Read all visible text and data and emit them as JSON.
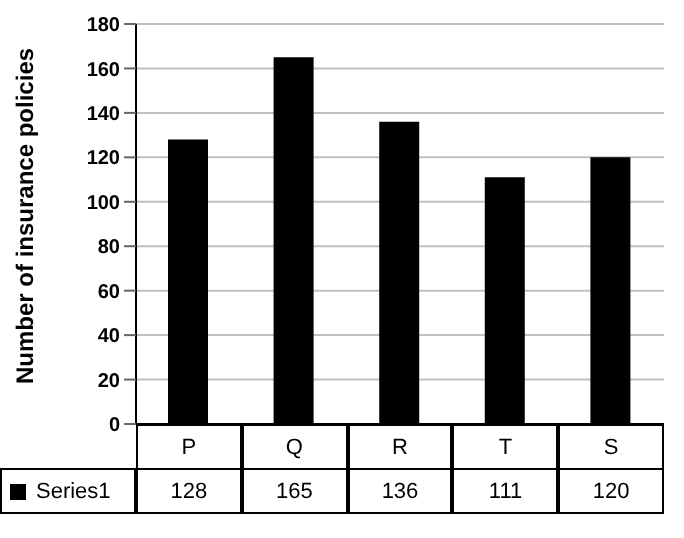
{
  "chart_data": {
    "type": "bar",
    "ylabel": "Number of insurance policies",
    "categories": [
      "P",
      "Q",
      "R",
      "T",
      "S"
    ],
    "series": [
      {
        "name": "Series1",
        "color": "#000000",
        "values": [
          128,
          165,
          136,
          111,
          120
        ]
      }
    ],
    "ylim": [
      0,
      180
    ],
    "yticks": [
      0,
      20,
      40,
      60,
      80,
      100,
      120,
      140,
      160,
      180
    ],
    "grid": "y",
    "legend": "bottom",
    "data_labels": true
  }
}
